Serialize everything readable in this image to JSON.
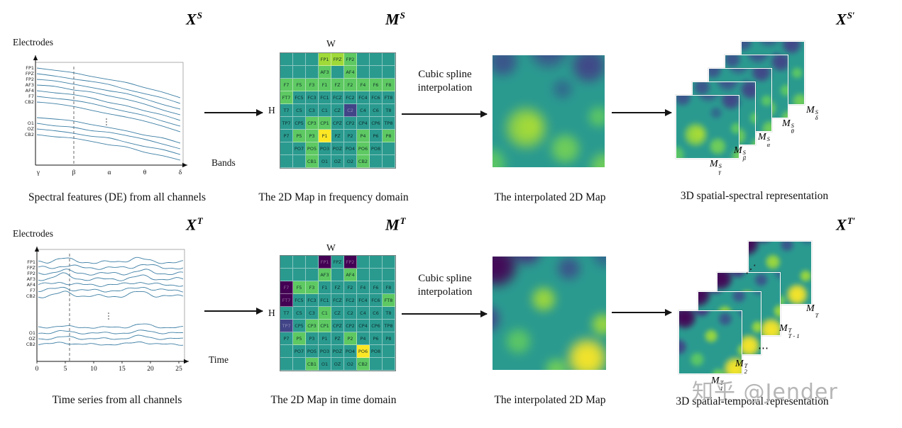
{
  "watermark": "知乎 @Jender",
  "palette": {
    "base": "#2a9a8f",
    "green": "#5ec962",
    "lime": "#a0da39",
    "yellow": "#fde725",
    "dark": "#440154",
    "navy": "#414487",
    "slate": "#31688e"
  },
  "line_color": "#3e7fa5",
  "rows": [
    {
      "plot": {
        "ylabel": "Electrodes",
        "xlabel": "Bands",
        "header": {
          "base": "X",
          "sup": "S"
        },
        "type": "decay",
        "electrodes_top": [
          "FP1",
          "FPZ",
          "FP2",
          "AF3",
          "AF4",
          "F7",
          "CB2"
        ],
        "electrodes_bottom": [
          "O1",
          "OZ",
          "CB2"
        ],
        "xticks": [
          "γ",
          "β",
          "α",
          "θ",
          "δ"
        ],
        "caption": "Spectral features (DE) from all channels"
      },
      "map": {
        "header": {
          "base": "M",
          "sup": "S"
        },
        "w_label": "W",
        "h_label": "H",
        "caption": "The 2D Map in frequency domain",
        "cells": [
          [
            null,
            null,
            null,
            [
              "FP1",
              "lime"
            ],
            [
              "FPZ",
              "lime"
            ],
            [
              "FP2",
              "green"
            ],
            null,
            null,
            null
          ],
          [
            null,
            null,
            null,
            [
              "AF3",
              "green"
            ],
            null,
            [
              "AF4",
              "green"
            ],
            null,
            null,
            null
          ],
          [
            [
              "F7",
              "green"
            ],
            [
              "F5",
              "green"
            ],
            [
              "F3",
              "green"
            ],
            [
              "F1",
              "green"
            ],
            [
              "FZ",
              "green"
            ],
            [
              "F2",
              "green"
            ],
            [
              "F4",
              "green"
            ],
            [
              "F6",
              "green"
            ],
            [
              "F8",
              "green"
            ]
          ],
          [
            [
              "FT7",
              "green"
            ],
            [
              "FC5",
              "base"
            ],
            [
              "FC3",
              "base"
            ],
            [
              "FC1",
              "base"
            ],
            [
              "FCZ",
              "base"
            ],
            [
              "FC2",
              "base"
            ],
            [
              "FC4",
              "base"
            ],
            [
              "FC6",
              "base"
            ],
            [
              "FT8",
              "base"
            ]
          ],
          [
            [
              "T7",
              "base"
            ],
            [
              "C5",
              "base"
            ],
            [
              "C3",
              "base"
            ],
            [
              "C1",
              "base"
            ],
            [
              "CZ",
              "base"
            ],
            [
              "C2",
              "navy"
            ],
            [
              "C4",
              "base"
            ],
            [
              "C6",
              "base"
            ],
            [
              "T8",
              "base"
            ]
          ],
          [
            [
              "TP7",
              "base"
            ],
            [
              "CP5",
              "base"
            ],
            [
              "CP3",
              "green"
            ],
            [
              "CP1",
              "green"
            ],
            [
              "CPZ",
              "base"
            ],
            [
              "CP2",
              "base"
            ],
            [
              "CP4",
              "base"
            ],
            [
              "CP6",
              "base"
            ],
            [
              "TP8",
              "base"
            ]
          ],
          [
            [
              "P7",
              "base"
            ],
            [
              "P5",
              "green"
            ],
            [
              "P3",
              "green"
            ],
            [
              "P1",
              "yellow"
            ],
            [
              "PZ",
              "base"
            ],
            [
              "P2",
              "base"
            ],
            [
              "P4",
              "green"
            ],
            [
              "P6",
              "base"
            ],
            [
              "P8",
              "green"
            ]
          ],
          [
            null,
            [
              "PO7",
              "base"
            ],
            [
              "PO5",
              "green"
            ],
            [
              "PO3",
              "base"
            ],
            [
              "POZ",
              "base"
            ],
            [
              "PO4",
              "base"
            ],
            [
              "PO6",
              "green"
            ],
            [
              "PO8",
              "base"
            ],
            null
          ],
          [
            null,
            null,
            [
              "CB1",
              "green"
            ],
            [
              "O1",
              "base"
            ],
            [
              "OZ",
              "base"
            ],
            [
              "O2",
              "base"
            ],
            [
              "CB2",
              "green"
            ],
            null,
            null
          ]
        ]
      },
      "interp_arrow": [
        "Cubic spline",
        "interpolation"
      ],
      "interp": {
        "caption": "The interpolated 2D Map",
        "base": "#2a9a8f",
        "blobs": [
          {
            "x": 50,
            "y": 5,
            "r": 16,
            "c": "#3b528b"
          },
          {
            "x": 79,
            "y": 17,
            "r": 13,
            "c": "#414487"
          },
          {
            "x": 17,
            "y": 14,
            "r": 11,
            "c": "#3b528b"
          },
          {
            "x": 60,
            "y": 34,
            "r": 10,
            "c": "#31688e"
          },
          {
            "x": 34,
            "y": 62,
            "r": 20,
            "c": "#a0da39"
          },
          {
            "x": 37,
            "y": 61,
            "r": 9,
            "c": "#fde725"
          },
          {
            "x": 62,
            "y": 77,
            "r": 13,
            "c": "#73d056"
          },
          {
            "x": 86,
            "y": 54,
            "r": 9,
            "c": "#5ec962"
          },
          {
            "x": 8,
            "y": 88,
            "r": 11,
            "c": "#5ec962"
          },
          {
            "x": 90,
            "y": 90,
            "r": 10,
            "c": "#73d056"
          }
        ]
      },
      "stack": {
        "header": {
          "base": "X",
          "sup": "S′"
        },
        "caption": "3D spatial-spectral representation",
        "labels": [
          {
            "base": "M",
            "sup": "S",
            "sub": "γ"
          },
          {
            "base": "M",
            "sup": "S",
            "sub": "β"
          },
          {
            "base": "M",
            "sup": "S",
            "sub": "α"
          },
          {
            "base": "M",
            "sup": "S",
            "sub": "θ"
          },
          {
            "base": "M",
            "sup": "S",
            "sub": "δ"
          }
        ]
      }
    },
    {
      "plot": {
        "ylabel": "Electrodes",
        "xlabel": "Time",
        "header": {
          "base": "X",
          "sup": "T"
        },
        "type": "wave",
        "electrodes_top": [
          "FP1",
          "FPZ",
          "FP2",
          "AF3",
          "AF4",
          "F7",
          "CB2"
        ],
        "electrodes_bottom": [
          "O1",
          "OZ",
          "CB2"
        ],
        "xticks": [
          "0",
          "5",
          "10",
          "15",
          "20",
          "25"
        ],
        "caption": "Time series from all channels"
      },
      "map": {
        "header": {
          "base": "M",
          "sup": "T"
        },
        "w_label": "W",
        "h_label": "H",
        "caption": "The 2D Map in time domain",
        "cells": [
          [
            null,
            null,
            null,
            [
              "FP1",
              "dark"
            ],
            [
              "FPZ",
              "base"
            ],
            [
              "FP2",
              "dark"
            ],
            null,
            null,
            null
          ],
          [
            null,
            null,
            null,
            [
              "AF3",
              "green"
            ],
            null,
            [
              "AF4",
              "green"
            ],
            null,
            null,
            null
          ],
          [
            [
              "F7",
              "dark"
            ],
            [
              "F5",
              "green"
            ],
            [
              "F3",
              "green"
            ],
            [
              "F1",
              "base"
            ],
            [
              "FZ",
              "base"
            ],
            [
              "F2",
              "base"
            ],
            [
              "F4",
              "base"
            ],
            [
              "F6",
              "base"
            ],
            [
              "F8",
              "base"
            ]
          ],
          [
            [
              "FT7",
              "dark"
            ],
            [
              "FC5",
              "base"
            ],
            [
              "FC3",
              "base"
            ],
            [
              "FC1",
              "base"
            ],
            [
              "FCZ",
              "base"
            ],
            [
              "FC2",
              "base"
            ],
            [
              "FC4",
              "base"
            ],
            [
              "FC6",
              "base"
            ],
            [
              "FT8",
              "green"
            ]
          ],
          [
            [
              "T7",
              "base"
            ],
            [
              "C5",
              "base"
            ],
            [
              "C3",
              "base"
            ],
            [
              "C1",
              "green"
            ],
            [
              "CZ",
              "base"
            ],
            [
              "C2",
              "base"
            ],
            [
              "C4",
              "base"
            ],
            [
              "C6",
              "base"
            ],
            [
              "T8",
              "base"
            ]
          ],
          [
            [
              "TP7",
              "navy"
            ],
            [
              "CP5",
              "base"
            ],
            [
              "CP3",
              "green"
            ],
            [
              "CP1",
              "green"
            ],
            [
              "CPZ",
              "base"
            ],
            [
              "CP2",
              "base"
            ],
            [
              "CP4",
              "base"
            ],
            [
              "CP6",
              "base"
            ],
            [
              "TP8",
              "base"
            ]
          ],
          [
            [
              "P7",
              "base"
            ],
            [
              "P5",
              "green"
            ],
            [
              "P3",
              "base"
            ],
            [
              "P1",
              "base"
            ],
            [
              "PZ",
              "base"
            ],
            [
              "P2",
              "green"
            ],
            [
              "P4",
              "base"
            ],
            [
              "P6",
              "base"
            ],
            [
              "P8",
              "base"
            ]
          ],
          [
            null,
            [
              "PO7",
              "base"
            ],
            [
              "PO5",
              "base"
            ],
            [
              "PO3",
              "base"
            ],
            [
              "POZ",
              "base"
            ],
            [
              "PO4",
              "base"
            ],
            [
              "PO6",
              "yellow"
            ],
            [
              "PO8",
              "base"
            ],
            null
          ],
          [
            null,
            null,
            [
              "CB1",
              "green"
            ],
            [
              "O1",
              "base"
            ],
            [
              "OZ",
              "base"
            ],
            [
              "O2",
              "base"
            ],
            [
              "CB2",
              "green"
            ],
            null,
            null
          ]
        ]
      },
      "interp_arrow": [
        "Cubic spline",
        "interpolation"
      ],
      "interp": {
        "caption": "The interpolated 2D Map",
        "base": "#2a9a8f",
        "blobs": [
          {
            "x": 12,
            "y": 16,
            "r": 15,
            "c": "#440154"
          },
          {
            "x": 34,
            "y": 5,
            "r": 11,
            "c": "#46327e"
          },
          {
            "x": 5,
            "y": 54,
            "r": 11,
            "c": "#414487"
          },
          {
            "x": 64,
            "y": 18,
            "r": 10,
            "c": "#3b528b"
          },
          {
            "x": 46,
            "y": 40,
            "r": 13,
            "c": "#a0da39"
          },
          {
            "x": 28,
            "y": 70,
            "r": 11,
            "c": "#5ec962"
          },
          {
            "x": 77,
            "y": 82,
            "r": 15,
            "c": "#fde725"
          },
          {
            "x": 88,
            "y": 58,
            "r": 9,
            "c": "#a0da39"
          },
          {
            "x": 55,
            "y": 90,
            "r": 9,
            "c": "#73d056"
          },
          {
            "x": 90,
            "y": 8,
            "r": 9,
            "c": "#31688e"
          }
        ]
      },
      "stack": {
        "header": {
          "base": "X",
          "sup": "T′"
        },
        "caption": "3D spatial-temporal representation",
        "labels": [
          {
            "base": "M",
            "sup": "T",
            "sub": "1"
          },
          {
            "base": "M",
            "sup": "T",
            "sub": "2"
          },
          {
            "dots": "⋯"
          },
          {
            "base": "M",
            "sup": "T",
            "sub": "T - 1"
          },
          {
            "base": "M",
            "sub": "T"
          }
        ],
        "dots": "⋰"
      }
    }
  ]
}
